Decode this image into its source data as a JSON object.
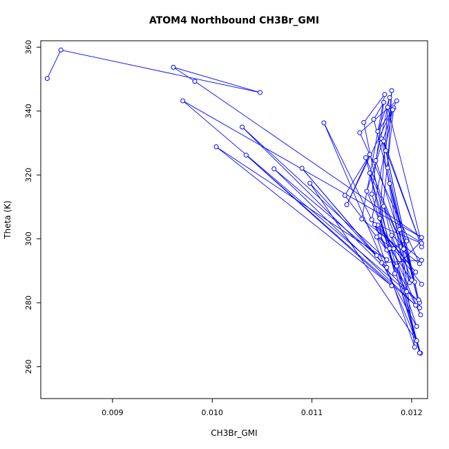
{
  "chart_data": {
    "type": "scatter",
    "title": "ATOM4 Northbound CH3Br_GMI",
    "xlabel": "CH3Br_GMI",
    "ylabel": "Theta (K)",
    "xlim": [
      0.00828,
      0.01216
    ],
    "ylim": [
      250,
      362
    ],
    "xticks": [
      0.009,
      0.01,
      0.011,
      0.012
    ],
    "xtick_labels": [
      "0.009",
      "0.010",
      "0.011",
      "0.012"
    ],
    "yticks": [
      260,
      280,
      300,
      320,
      340,
      360
    ],
    "ytick_labels": [
      "260",
      "280",
      "300",
      "320",
      "340",
      "360"
    ],
    "grid": false,
    "color": "#0000ff",
    "marker": "open-circle",
    "connected": true,
    "series": [
      {
        "x": [
          0.008345,
          0.008482,
          0.01048,
          0.00961,
          0.009825,
          0.0121,
          0.009705,
          0.01208,
          0.0103,
          0.01175,
          0.01004,
          0.0118,
          0.01034,
          0.01204,
          0.01062,
          0.01165,
          0.0109,
          0.01175,
          0.01098,
          0.01205,
          0.01112,
          0.01175,
          0.01133,
          0.01158,
          0.01135,
          0.01185,
          0.01148,
          0.01208,
          0.0115,
          0.01173,
          0.01152,
          0.01183,
          0.01154,
          0.01192,
          0.01158,
          0.01209,
          0.0116,
          0.01172,
          0.01162,
          0.01203,
          0.01164,
          0.01178,
          0.01166,
          0.01182,
          0.01168,
          0.01195,
          0.0117,
          0.0121,
          0.01172,
          0.01207,
          0.01174,
          0.0118,
          0.01176,
          0.01208,
          0.01178,
          0.01198,
          0.0118,
          0.0121,
          0.0117,
          0.01205,
          0.01185,
          0.01209,
          0.01188,
          0.01203,
          0.01165,
          0.01182,
          0.01195,
          0.01178,
          0.012,
          0.01172,
          0.01208,
          0.01168,
          0.01176,
          0.0121,
          0.01166,
          0.01204,
          0.0116,
          0.01181,
          0.01155,
          0.01209,
          0.01163,
          0.0121
        ],
        "y": [
          350.2,
          359.1,
          345.8,
          353.7,
          349.3,
          300.4,
          343.2,
          280.1,
          335.0,
          293.5,
          328.8,
          285.3,
          326.2,
          279.2,
          321.9,
          294.8,
          322.1,
          291.0,
          317.4,
          268.1,
          336.3,
          296.5,
          313.6,
          326.4,
          310.7,
          343.2,
          333.2,
          292.2,
          306.2,
          345.2,
          336.4,
          289.1,
          325.4,
          296.8,
          320.6,
          264.2,
          314.0,
          342.7,
          337.4,
          286.5,
          324.5,
          344.2,
          333.6,
          341.0,
          300.9,
          283.5,
          331.3,
          297.5,
          330.6,
          280.9,
          327.6,
          346.4,
          322.2,
          278.4,
          317.3,
          286.3,
          301.1,
          293.3,
          292.5,
          272.6,
          291.5,
          299.0,
          302.9,
          266.1,
          300.6,
          296.9,
          299.3,
          297.0,
          287.1,
          310.2,
          264.3,
          306.4,
          341.2,
          298.6,
          304.3,
          289.6,
          306.0,
          340.4,
          314.9,
          276.2,
          304.5,
          285.8
        ]
      }
    ]
  }
}
